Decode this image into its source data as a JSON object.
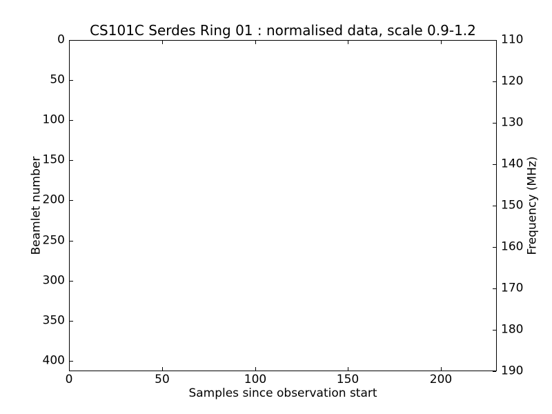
{
  "chart_data": {
    "type": "heatmap",
    "title": "CS101C Serdes Ring 01 : normalised data, scale 0.9-1.2",
    "xlabel": "Samples since observation start",
    "ylabel_left": "Beamlet number",
    "ylabel_right": "Frequency (MHz)",
    "xlim": [
      0,
      230
    ],
    "x_ticks": [
      0,
      50,
      100,
      150,
      200
    ],
    "ylim_left": [
      0,
      413
    ],
    "y_left_inverted": true,
    "y_left_ticks": [
      0,
      50,
      100,
      150,
      200,
      250,
      300,
      350,
      400
    ],
    "ylim_right": [
      110,
      190
    ],
    "y_right_ticks": [
      110,
      120,
      130,
      140,
      150,
      160,
      170,
      180,
      190
    ],
    "values": [],
    "grid": false,
    "legend": "none",
    "plot_background": "#ffffff",
    "axis_color": "#000000"
  }
}
